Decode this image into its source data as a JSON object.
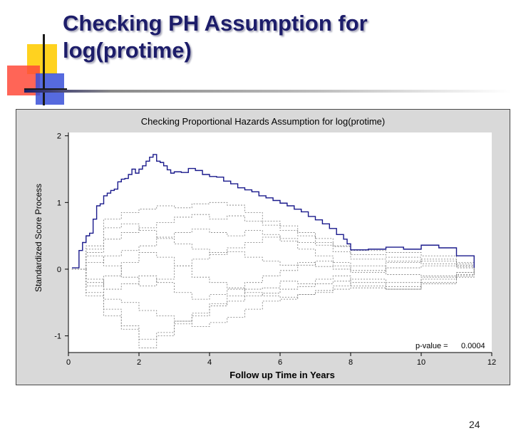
{
  "slide": {
    "title_line1": "Checking PH Assumption for",
    "title_line2": "log(protime)",
    "page_number": "24"
  },
  "colors": {
    "title": "#1d1d6a",
    "observed_line": "#1a1a8c",
    "simulated_lines": "#7a7a7a",
    "plot_background": "#ffffff",
    "frame_background": "#d9d9d9"
  },
  "chart_data": {
    "type": "line",
    "title": "Checking Proportional Hazards Assumption for log(protime)",
    "xlabel": "Follow up Time in Years",
    "ylabel": "Standardized Score Process",
    "xlim": [
      0,
      12
    ],
    "ylim": [
      -1.25,
      2.05
    ],
    "xticks": [
      0,
      2,
      4,
      6,
      8,
      10,
      12
    ],
    "yticks": [
      -1,
      0,
      1,
      2
    ],
    "grid": false,
    "legend": "none",
    "annotation": "p-value =",
    "annotation_value": "0.0004",
    "series": [
      {
        "style": "observed",
        "x": [
          0.1,
          0.3,
          0.4,
          0.5,
          0.6,
          0.7,
          0.8,
          0.9,
          1.0,
          1.1,
          1.2,
          1.3,
          1.4,
          1.5,
          1.6,
          1.7,
          1.8,
          1.9,
          2.0,
          2.1,
          2.2,
          2.3,
          2.4,
          2.5,
          2.6,
          2.7,
          2.8,
          2.9,
          3.0,
          3.2,
          3.4,
          3.6,
          3.8,
          4.0,
          4.2,
          4.4,
          4.6,
          4.8,
          5.0,
          5.2,
          5.4,
          5.6,
          5.8,
          6.0,
          6.2,
          6.4,
          6.6,
          6.8,
          7.0,
          7.2,
          7.4,
          7.6,
          7.8,
          7.9,
          8.0,
          8.5,
          9.0,
          9.5,
          10.0,
          10.5,
          11.0,
          11.5
        ],
        "y": [
          0.02,
          0.28,
          0.4,
          0.5,
          0.54,
          0.75,
          0.95,
          0.98,
          1.1,
          1.14,
          1.18,
          1.2,
          1.31,
          1.35,
          1.36,
          1.42,
          1.5,
          1.44,
          1.5,
          1.55,
          1.62,
          1.68,
          1.72,
          1.62,
          1.6,
          1.55,
          1.49,
          1.44,
          1.46,
          1.45,
          1.51,
          1.48,
          1.42,
          1.39,
          1.38,
          1.32,
          1.28,
          1.22,
          1.19,
          1.16,
          1.1,
          1.07,
          1.03,
          0.99,
          0.95,
          0.9,
          0.86,
          0.79,
          0.74,
          0.68,
          0.61,
          0.52,
          0.45,
          0.38,
          0.29,
          0.3,
          0.33,
          0.3,
          0.36,
          0.32,
          0.2,
          0.02
        ]
      },
      {
        "style": "simulated",
        "x": [
          0.1,
          0.5,
          1.0,
          1.5,
          2.0,
          2.5,
          3.0,
          3.5,
          4.0,
          4.5,
          5.0,
          5.5,
          6.0,
          6.5,
          7.0,
          7.5,
          8.0,
          9.0,
          10.0,
          11.0,
          11.5
        ],
        "y": [
          0.0,
          0.3,
          0.75,
          0.85,
          0.9,
          0.95,
          0.92,
          0.98,
          1.0,
          0.96,
          0.85,
          0.72,
          0.65,
          0.55,
          0.46,
          0.35,
          0.22,
          0.18,
          0.12,
          0.06,
          0.0
        ]
      },
      {
        "style": "simulated",
        "x": [
          0.1,
          0.5,
          1.0,
          1.5,
          2.0,
          2.5,
          3.0,
          3.5,
          4.0,
          4.5,
          5.0,
          5.5,
          6.0,
          6.5,
          7.0,
          7.5,
          8.0,
          9.0,
          10.0,
          11.0,
          11.5
        ],
        "y": [
          0.0,
          -0.35,
          -0.6,
          -0.85,
          -1.05,
          -0.95,
          -0.78,
          -0.7,
          -0.55,
          -0.4,
          -0.3,
          -0.28,
          -0.18,
          -0.22,
          -0.15,
          -0.1,
          -0.25,
          -0.3,
          -0.12,
          -0.05,
          0.0
        ]
      },
      {
        "style": "simulated",
        "x": [
          0.1,
          0.5,
          1.0,
          1.5,
          2.0,
          2.5,
          3.0,
          3.5,
          4.0,
          4.5,
          5.0,
          5.5,
          6.0,
          6.5,
          7.0,
          7.5,
          8.0,
          9.0,
          10.0,
          11.0,
          11.5
        ],
        "y": [
          0.0,
          0.25,
          0.45,
          0.55,
          0.62,
          0.7,
          0.78,
          0.82,
          0.75,
          0.8,
          0.72,
          0.66,
          0.58,
          0.5,
          0.4,
          0.34,
          0.28,
          0.25,
          0.2,
          0.1,
          0.0
        ]
      },
      {
        "style": "simulated",
        "x": [
          0.1,
          0.5,
          1.0,
          1.5,
          2.0,
          2.5,
          3.0,
          3.5,
          4.0,
          4.5,
          5.0,
          5.5,
          6.0,
          6.5,
          7.0,
          7.5,
          8.0,
          9.0,
          10.0,
          11.0,
          11.5
        ],
        "y": [
          0.0,
          -0.2,
          -0.45,
          -0.5,
          -0.62,
          -0.7,
          -0.78,
          -0.86,
          -0.8,
          -0.72,
          -0.6,
          -0.48,
          -0.45,
          -0.38,
          -0.32,
          -0.25,
          -0.2,
          -0.26,
          -0.2,
          -0.1,
          0.0
        ]
      },
      {
        "style": "simulated",
        "x": [
          0.1,
          0.5,
          1.0,
          1.5,
          2.0,
          2.5,
          3.0,
          3.5,
          4.0,
          4.5,
          5.0,
          5.5,
          6.0,
          6.5,
          7.0,
          7.5,
          8.0,
          9.0,
          10.0,
          11.0,
          11.5
        ],
        "y": [
          0.0,
          0.1,
          0.2,
          0.28,
          0.35,
          0.48,
          0.55,
          0.6,
          0.55,
          0.5,
          0.58,
          0.52,
          0.46,
          0.4,
          0.36,
          0.26,
          0.15,
          0.12,
          0.08,
          0.04,
          0.0
        ]
      },
      {
        "style": "simulated",
        "x": [
          0.1,
          0.5,
          1.0,
          1.5,
          2.0,
          2.5,
          3.0,
          3.5,
          4.0,
          4.5,
          5.0,
          5.5,
          6.0,
          6.5,
          7.0,
          7.5,
          8.0,
          9.0,
          10.0,
          11.0,
          11.5
        ],
        "y": [
          0.0,
          -0.4,
          -0.7,
          -0.9,
          -1.18,
          -1.0,
          -0.82,
          -0.66,
          -0.52,
          -0.48,
          -0.4,
          -0.36,
          -0.3,
          -0.26,
          -0.22,
          -0.18,
          -0.15,
          -0.2,
          -0.15,
          -0.08,
          0.0
        ]
      },
      {
        "style": "simulated",
        "x": [
          0.1,
          0.5,
          1.0,
          1.5,
          2.0,
          2.5,
          3.0,
          3.5,
          4.0,
          4.5,
          5.0,
          5.5,
          6.0,
          6.5,
          7.0,
          7.5,
          8.0,
          9.0,
          10.0,
          11.0,
          11.5
        ],
        "y": [
          0.0,
          0.35,
          0.62,
          0.68,
          0.58,
          0.46,
          0.38,
          0.3,
          0.22,
          0.26,
          0.18,
          0.12,
          0.06,
          0.1,
          0.04,
          0.0,
          -0.05,
          0.02,
          0.05,
          0.02,
          0.0
        ]
      },
      {
        "style": "simulated",
        "x": [
          0.1,
          0.5,
          1.0,
          1.5,
          2.0,
          2.5,
          3.0,
          3.5,
          4.0,
          4.5,
          5.0,
          5.5,
          6.0,
          6.5,
          7.0,
          7.5,
          8.0,
          9.0,
          10.0,
          11.0,
          11.5
        ],
        "y": [
          0.0,
          -0.15,
          -0.3,
          -0.22,
          -0.1,
          -0.2,
          -0.35,
          -0.45,
          -0.38,
          -0.3,
          -0.2,
          -0.1,
          -0.02,
          0.06,
          0.12,
          0.05,
          -0.02,
          0.1,
          0.15,
          0.08,
          0.0
        ]
      },
      {
        "style": "simulated",
        "x": [
          0.1,
          0.5,
          1.0,
          1.5,
          2.0,
          2.5,
          3.0,
          3.5,
          4.0,
          4.5,
          5.0,
          5.5,
          6.0,
          6.5,
          7.0,
          7.5,
          8.0,
          9.0,
          10.0,
          11.0,
          11.5
        ],
        "y": [
          0.0,
          0.2,
          0.05,
          -0.12,
          -0.25,
          -0.15,
          0.05,
          0.15,
          0.25,
          0.32,
          0.4,
          0.48,
          0.42,
          0.3,
          0.2,
          0.1,
          0.05,
          -0.08,
          -0.1,
          -0.05,
          0.0
        ]
      },
      {
        "style": "simulated",
        "x": [
          0.1,
          0.5,
          1.0,
          1.5,
          2.0,
          2.5,
          3.0,
          3.5,
          4.0,
          4.5,
          5.0,
          5.5,
          6.0,
          6.5,
          7.0,
          7.5,
          8.0,
          9.0,
          10.0,
          11.0,
          11.5
        ],
        "y": [
          0.0,
          -0.25,
          -0.1,
          0.1,
          0.25,
          0.18,
          0.05,
          -0.12,
          -0.2,
          -0.28,
          -0.35,
          -0.4,
          -0.42,
          -0.38,
          -0.35,
          -0.3,
          -0.28,
          -0.3,
          -0.22,
          -0.12,
          0.0
        ]
      }
    ]
  }
}
